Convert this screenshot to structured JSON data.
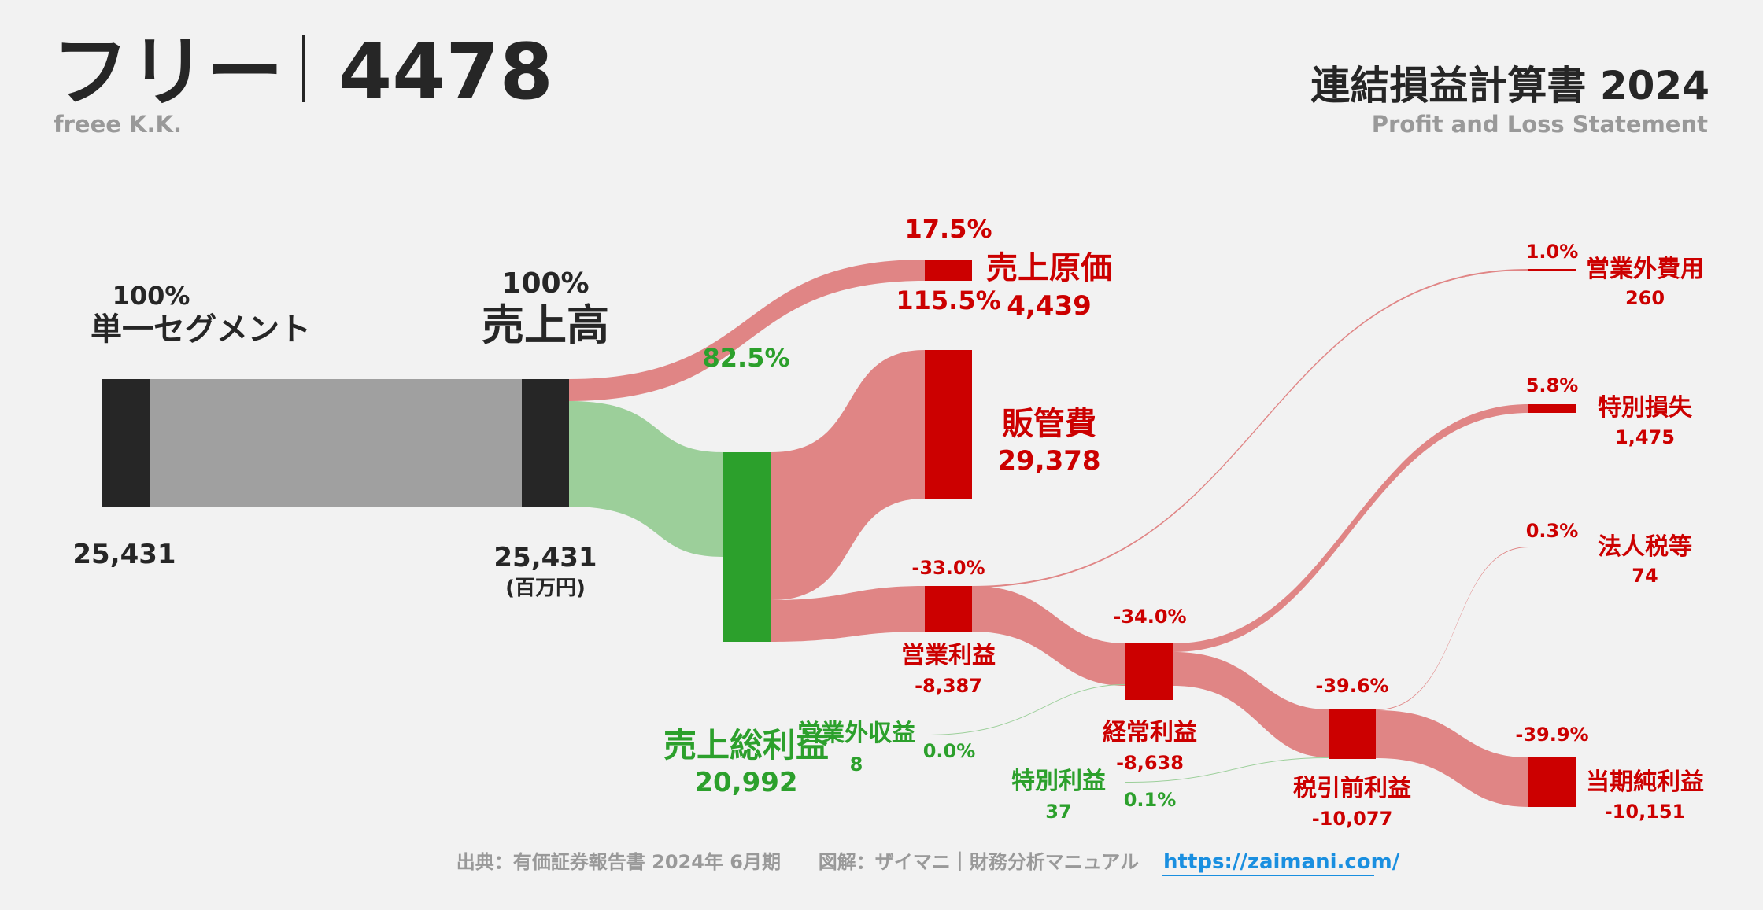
{
  "header": {
    "company_name": "フリー",
    "ticker": "4478",
    "company_en": "freee K.K.",
    "statement_title": "連結損益計算書 2024",
    "statement_subtitle": "Profit and Loss Statement"
  },
  "footer": {
    "source": "出典：有価証券報告書 2024年 6月期",
    "credit": "図解：ザイマニ｜財務分析マニュアル",
    "link": "https://zaimani.com/"
  },
  "colors": {
    "profit_green": "#2ca02c",
    "flow_green": "#9ccf9a",
    "loss_red": "#cc0000",
    "flow_red": "#e08585",
    "node_black": "#262626",
    "flow_gray": "#a0a0a0",
    "text_dark": "#262626",
    "text_gray": "#999999",
    "link_blue": "#1a8fe0"
  },
  "chart_data": {
    "type": "sankey",
    "unit": "(百万円)",
    "nodes": [
      {
        "id": "segment",
        "label": "単一セグメント",
        "value": "25,431",
        "pct": "100%"
      },
      {
        "id": "revenue",
        "label": "売上高",
        "value": "25,431",
        "pct": "100%"
      },
      {
        "id": "cogs",
        "label": "売上原価",
        "value": "4,439",
        "pct": "17.5%",
        "pct_extra": "115.5%"
      },
      {
        "id": "gross",
        "label": "売上総利益",
        "value": "20,992",
        "pct": "82.5%"
      },
      {
        "id": "sga",
        "label": "販管費",
        "value": "29,378"
      },
      {
        "id": "op_income",
        "label": "営業利益",
        "value": "-8,387",
        "pct": "-33.0%"
      },
      {
        "id": "non_op_income",
        "label": "営業外収益",
        "value": "8",
        "pct": "0.0%"
      },
      {
        "id": "non_op_expense",
        "label": "営業外費用",
        "value": "260",
        "pct": "1.0%"
      },
      {
        "id": "ordinary",
        "label": "経常利益",
        "value": "-8,638",
        "pct": "-34.0%"
      },
      {
        "id": "special_gain",
        "label": "特別利益",
        "value": "37",
        "pct": "0.1%"
      },
      {
        "id": "special_loss",
        "label": "特別損失",
        "value": "1,475",
        "pct": "5.8%"
      },
      {
        "id": "pretax",
        "label": "税引前利益",
        "value": "-10,077",
        "pct": "-39.6%"
      },
      {
        "id": "tax",
        "label": "法人税等",
        "value": "74",
        "pct": "0.3%"
      },
      {
        "id": "net",
        "label": "当期純利益",
        "value": "-10,151",
        "pct": "-39.9%"
      }
    ],
    "links": [
      {
        "source": "segment",
        "target": "revenue",
        "value": 25431
      },
      {
        "source": "revenue",
        "target": "cogs",
        "value": 4439
      },
      {
        "source": "revenue",
        "target": "gross",
        "value": 20992
      },
      {
        "source": "gross",
        "target": "sga",
        "value": 20992
      },
      {
        "source": "gross",
        "target": "op_income",
        "value": 8387
      },
      {
        "source": "op_income",
        "target": "ordinary",
        "value": 8387
      },
      {
        "source": "op_income",
        "target": "non_op_expense",
        "value": 260
      },
      {
        "source": "non_op_income",
        "target": "ordinary",
        "value": 8
      },
      {
        "source": "ordinary",
        "target": "special_loss",
        "value": 1475
      },
      {
        "source": "ordinary",
        "target": "pretax",
        "value": 8638
      },
      {
        "source": "special_gain",
        "target": "pretax",
        "value": 37
      },
      {
        "source": "pretax",
        "target": "tax",
        "value": 74
      },
      {
        "source": "pretax",
        "target": "net",
        "value": 10077
      }
    ]
  }
}
